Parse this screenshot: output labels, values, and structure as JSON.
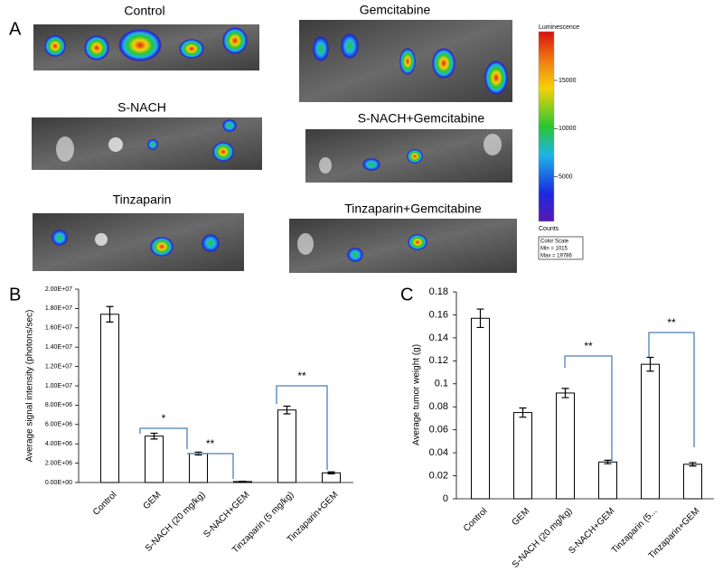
{
  "panel_a": {
    "label": "A",
    "images": [
      "Control",
      "Gemcitabine",
      "S-NACH",
      "S-NACH+Gemcitabine",
      "Tinzaparin",
      "Tinzaparin+Gemcitabine"
    ],
    "colorbar": {
      "title": "Luminescence",
      "ticks": [
        5000,
        10000,
        15000
      ],
      "bottom_label": "Counts",
      "legend_title": "Color Scale",
      "min": {
        "value": 1015,
        "label": "Min = 1015"
      },
      "max": {
        "value": 19786,
        "label": "Max = 19786"
      }
    }
  },
  "chart_data": [
    {
      "type": "bar",
      "panel": "B",
      "ylabel": "Average signal intensity (photons/sec)",
      "categories": [
        "Control",
        "GEM",
        "S-NACH (20 mg/kg)",
        "S-NACH+GEM",
        "Tinzaparin (5 mg/kg)",
        "Tinzaparin+GEM"
      ],
      "values": [
        17400000,
        4800000,
        3000000,
        100000,
        7500000,
        1000000
      ],
      "errors": [
        800000,
        300000,
        150000,
        30000,
        400000,
        100000
      ],
      "ylim": [
        0,
        20000000
      ],
      "yticks": [
        {
          "value": 0,
          "label": "0.00E+00"
        },
        {
          "value": 2000000,
          "label": "2.00E+06"
        },
        {
          "value": 4000000,
          "label": "4.00E+06"
        },
        {
          "value": 6000000,
          "label": "6.00E+06"
        },
        {
          "value": 8000000,
          "label": "8.00E+06"
        },
        {
          "value": 10000000,
          "label": "1.00E+07"
        },
        {
          "value": 12000000,
          "label": "1.20E+07"
        },
        {
          "value": 14000000,
          "label": "1.40E+07"
        },
        {
          "value": 16000000,
          "label": "1.60E+07"
        },
        {
          "value": 18000000,
          "label": "1.80E+07"
        },
        {
          "value": 20000000,
          "label": "2.00E+07"
        }
      ],
      "annotations": [
        "*",
        "**",
        "**"
      ]
    },
    {
      "type": "bar",
      "panel": "C",
      "ylabel": "Average tumor weight (g)",
      "categories": [
        "Control",
        "GEM",
        "S-NACH (20 mg/kg)",
        "S-NACH+GEM",
        "Tinzaparin (5...",
        "Tinzaparin+GEM"
      ],
      "values": [
        0.157,
        0.075,
        0.092,
        0.032,
        0.117,
        0.03
      ],
      "errors": [
        0.008,
        0.004,
        0.004,
        0.0015,
        0.006,
        0.0015
      ],
      "ylim": [
        0,
        0.18
      ],
      "yticks": [
        0,
        0.02,
        0.04,
        0.06,
        0.08,
        0.1,
        0.12,
        0.14,
        0.16,
        0.18
      ],
      "annotations": [
        "**",
        "**"
      ]
    }
  ]
}
